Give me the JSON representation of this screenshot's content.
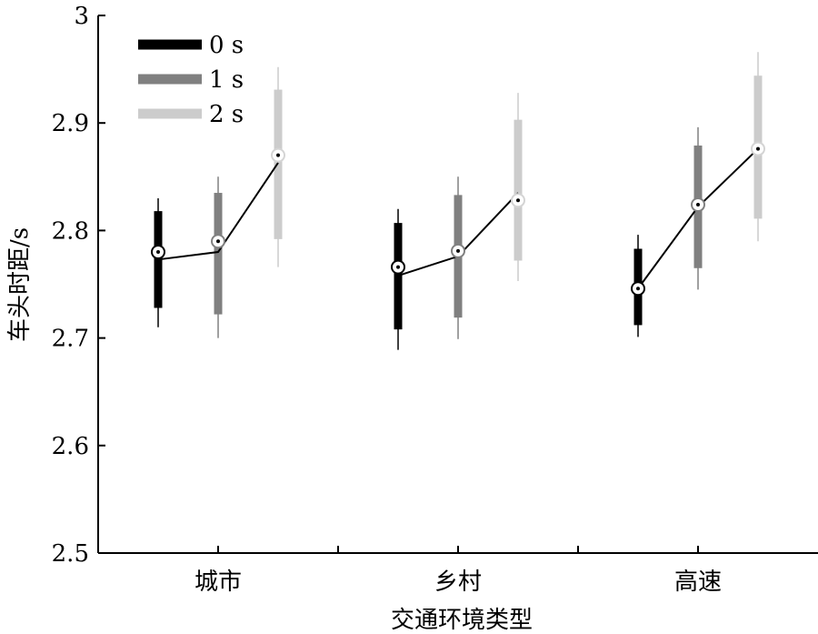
{
  "chart_data": {
    "type": "boxplot",
    "title": "",
    "xlabel": "交通环境类型",
    "ylabel": "车头时距/s",
    "ylim": [
      2.5,
      3.0
    ],
    "yticks": [
      "2.5",
      "2.6",
      "2.7",
      "2.8",
      "2.9",
      "3"
    ],
    "categories": [
      "城市",
      "乡村",
      "高速"
    ],
    "legend_position": "top-left",
    "series": [
      {
        "name": "0 s",
        "color": "#000000",
        "boxes": [
          {
            "whisker_low": 2.71,
            "q1": 2.728,
            "median": 2.78,
            "q3": 2.818,
            "whisker_high": 2.83,
            "mean_line": 2.773
          },
          {
            "whisker_low": 2.689,
            "q1": 2.708,
            "median": 2.766,
            "q3": 2.807,
            "whisker_high": 2.82,
            "mean_line": 2.758
          },
          {
            "whisker_low": 2.701,
            "q1": 2.712,
            "median": 2.746,
            "q3": 2.783,
            "whisker_high": 2.796,
            "mean_line": 2.746
          }
        ]
      },
      {
        "name": "1 s",
        "color": "#808080",
        "boxes": [
          {
            "whisker_low": 2.7,
            "q1": 2.722,
            "median": 2.79,
            "q3": 2.835,
            "whisker_high": 2.85,
            "mean_line": 2.78
          },
          {
            "whisker_low": 2.699,
            "q1": 2.719,
            "median": 2.781,
            "q3": 2.833,
            "whisker_high": 2.85,
            "mean_line": 2.776
          },
          {
            "whisker_low": 2.745,
            "q1": 2.765,
            "median": 2.824,
            "q3": 2.879,
            "whisker_high": 2.896,
            "mean_line": 2.822
          }
        ]
      },
      {
        "name": "2 s",
        "color": "#cccccc",
        "boxes": [
          {
            "whisker_low": 2.766,
            "q1": 2.792,
            "median": 2.87,
            "q3": 2.931,
            "whisker_high": 2.952,
            "mean_line": 2.863
          },
          {
            "whisker_low": 2.753,
            "q1": 2.772,
            "median": 2.828,
            "q3": 2.903,
            "whisker_high": 2.928,
            "mean_line": 2.835
          },
          {
            "whisker_low": 2.79,
            "q1": 2.811,
            "median": 2.876,
            "q3": 2.944,
            "whisker_high": 2.966,
            "mean_line": 2.876
          }
        ]
      }
    ]
  }
}
